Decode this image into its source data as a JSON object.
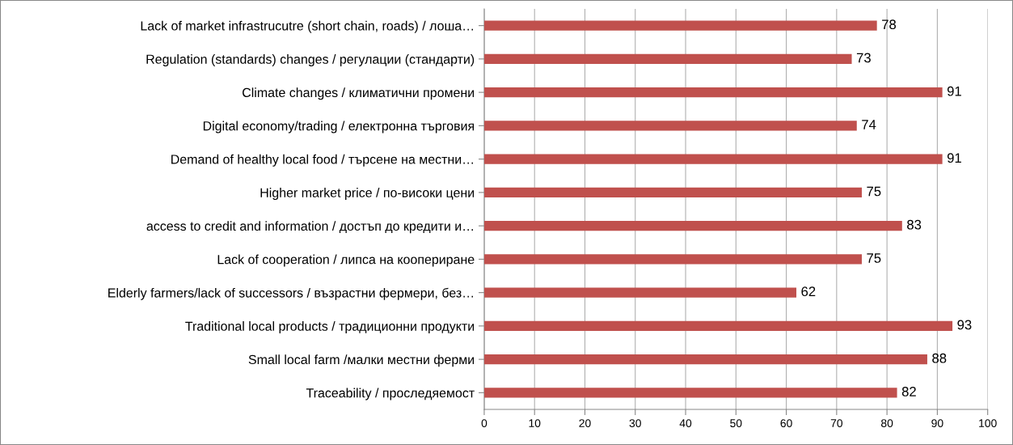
{
  "chart_data": {
    "type": "bar",
    "orientation": "horizontal",
    "categories": [
      "Lack of market infrastrucutre (short chain, roads) / лоша…",
      "Regulation (standards) changes / регулации (стандарти)",
      "Climate changes / климатични промени",
      "Digital economy/trading / електронна търговия",
      "Demand of healthy local food / търсене на местни…",
      "Higher market price / по-високи цени",
      "access to credit and information / достъп до кредити и…",
      "Lack of cooperation / липса на коопериране",
      "Elderly farmers/lack of successors / възрастни фермери, без…",
      "Traditional local products / традиционни продукти",
      "Small local farm /малки местни ферми",
      "Traceability / проследяемост"
    ],
    "values": [
      78,
      73,
      91,
      74,
      91,
      75,
      83,
      75,
      62,
      93,
      88,
      82
    ],
    "color": "#c0504d",
    "data_labels": true,
    "xlim": [
      0,
      100
    ],
    "xticks": [
      0,
      10,
      20,
      30,
      40,
      50,
      60,
      70,
      80,
      90,
      100
    ],
    "grid": "x"
  }
}
